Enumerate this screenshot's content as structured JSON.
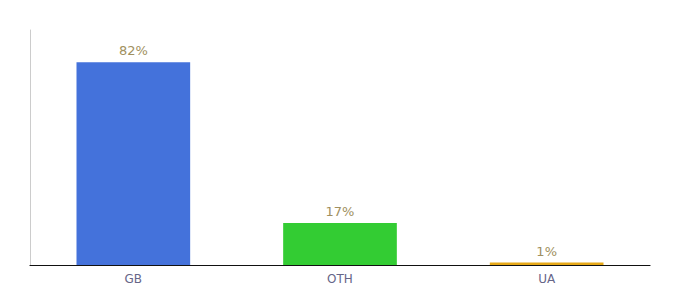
{
  "chart_data": {
    "type": "bar",
    "categories": [
      "GB",
      "OTH",
      "UA"
    ],
    "values": [
      82,
      17,
      1
    ],
    "value_labels": [
      "82%",
      "17%",
      "1%"
    ],
    "colors": [
      "#4472db",
      "#33cc33",
      "#e6a817"
    ],
    "ylim": [
      0,
      95
    ],
    "data_labels": true,
    "tick_labels": "x",
    "grid": false
  }
}
